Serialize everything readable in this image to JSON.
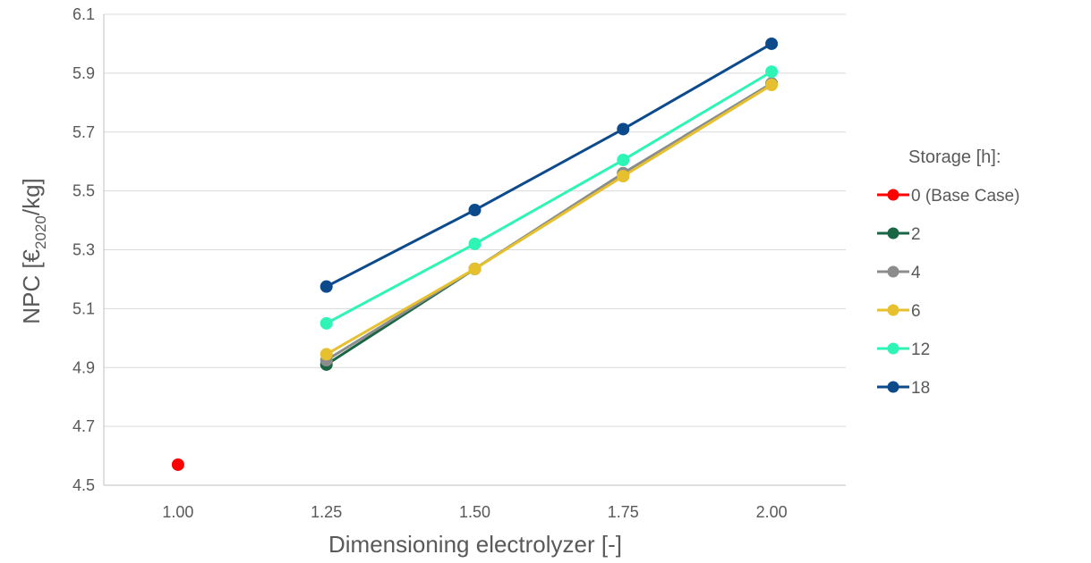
{
  "chart_data": {
    "type": "line",
    "x": [
      1.0,
      1.25,
      1.5,
      1.75,
      2.0
    ],
    "x_tick_labels": [
      "1.00",
      "1.25",
      "1.50",
      "1.75",
      "2.00"
    ],
    "y_tick_labels": [
      "4.5",
      "4.7",
      "4.9",
      "5.1",
      "5.3",
      "5.5",
      "5.7",
      "5.9",
      "6.1"
    ],
    "ylim": [
      4.5,
      6.1
    ],
    "xlabel": "Dimensioning electrolyzer [-]",
    "ylabel": {
      "prefix": "NPC [€",
      "subscript": "2020",
      "suffix": "/kg]"
    },
    "grid": "horizontal",
    "legend": {
      "title": "Storage [h]:",
      "position": "right"
    },
    "series": [
      {
        "name": "0 (Base Case)",
        "color": "#ff0000",
        "values": [
          4.57,
          null,
          null,
          null,
          null
        ]
      },
      {
        "name": "2",
        "color": "#1a6644",
        "values": [
          null,
          4.91,
          5.235,
          5.56,
          5.865
        ]
      },
      {
        "name": "4",
        "color": "#8c8c8c",
        "values": [
          null,
          4.925,
          5.235,
          5.56,
          5.865
        ]
      },
      {
        "name": "6",
        "color": "#e6c02e",
        "values": [
          null,
          4.945,
          5.235,
          5.55,
          5.86
        ]
      },
      {
        "name": "12",
        "color": "#2ef5b5",
        "values": [
          null,
          5.05,
          5.32,
          5.605,
          5.905
        ]
      },
      {
        "name": "18",
        "color": "#0d4a8c",
        "values": [
          null,
          5.175,
          5.435,
          5.71,
          6.0
        ]
      }
    ]
  }
}
